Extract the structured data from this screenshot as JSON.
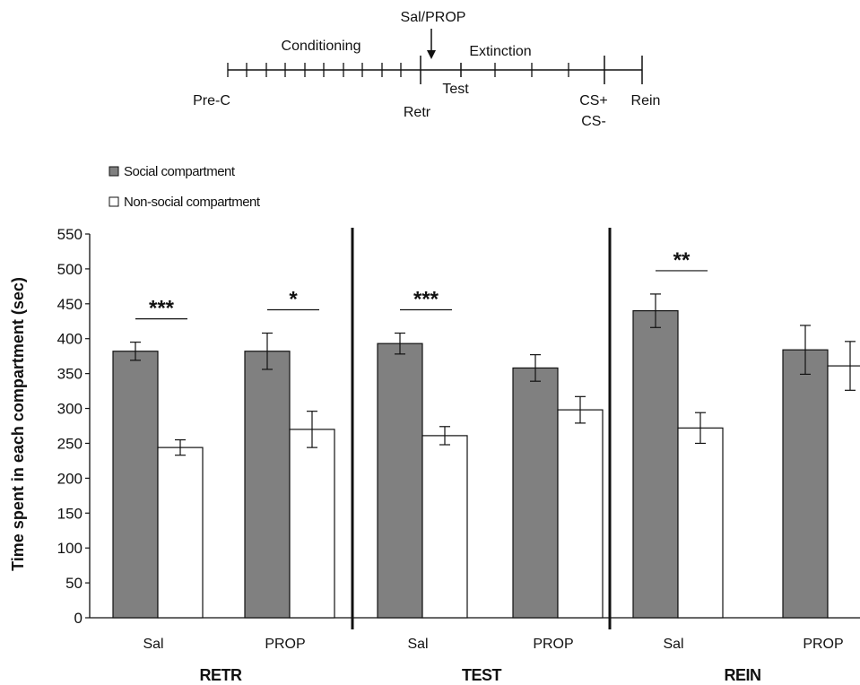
{
  "timeline": {
    "labels": {
      "pre_c": "Pre-C",
      "conditioning": "Conditioning",
      "sal_prop": "Sal/PROP",
      "extinction": "Extinction",
      "test": "Test",
      "retr": "Retr",
      "cs_plus": "CS+",
      "cs_minus": "CS-",
      "rein": "Rein"
    }
  },
  "legend": [
    {
      "label": "Social compartment",
      "color": "#808080"
    },
    {
      "label": "Non-social compartment",
      "color": "#ffffff"
    }
  ],
  "chart_data": {
    "type": "bar",
    "ylabel": "Time spent in each compartment (sec)",
    "ylim": [
      0,
      550
    ],
    "yticks": [
      "0",
      "50",
      "100",
      "150",
      "200",
      "250",
      "300",
      "350",
      "400",
      "450",
      "500",
      "550"
    ],
    "colors": {
      "social": "#808080",
      "nonsocial": "#ffffff"
    },
    "panels": [
      {
        "name": "RETR",
        "groups": [
          {
            "label": "Sal",
            "social": 382,
            "social_err": 13,
            "nonsocial": 244,
            "nonsocial_err": 11,
            "sig": "***"
          },
          {
            "label": "PROP",
            "social": 382,
            "social_err": 26,
            "nonsocial": 270,
            "nonsocial_err": 26,
            "sig": "*"
          }
        ]
      },
      {
        "name": "TEST",
        "groups": [
          {
            "label": "Sal",
            "social": 393,
            "social_err": 15,
            "nonsocial": 261,
            "nonsocial_err": 13,
            "sig": "***"
          },
          {
            "label": "PROP",
            "social": 358,
            "social_err": 19,
            "nonsocial": 298,
            "nonsocial_err": 19,
            "sig": ""
          }
        ]
      },
      {
        "name": "REIN",
        "groups": [
          {
            "label": "Sal",
            "social": 440,
            "social_err": 24,
            "nonsocial": 272,
            "nonsocial_err": 22,
            "sig": "**"
          },
          {
            "label": "PROP",
            "social": 384,
            "social_err": 35,
            "nonsocial": 361,
            "nonsocial_err": 35,
            "sig": ""
          }
        ]
      }
    ]
  }
}
